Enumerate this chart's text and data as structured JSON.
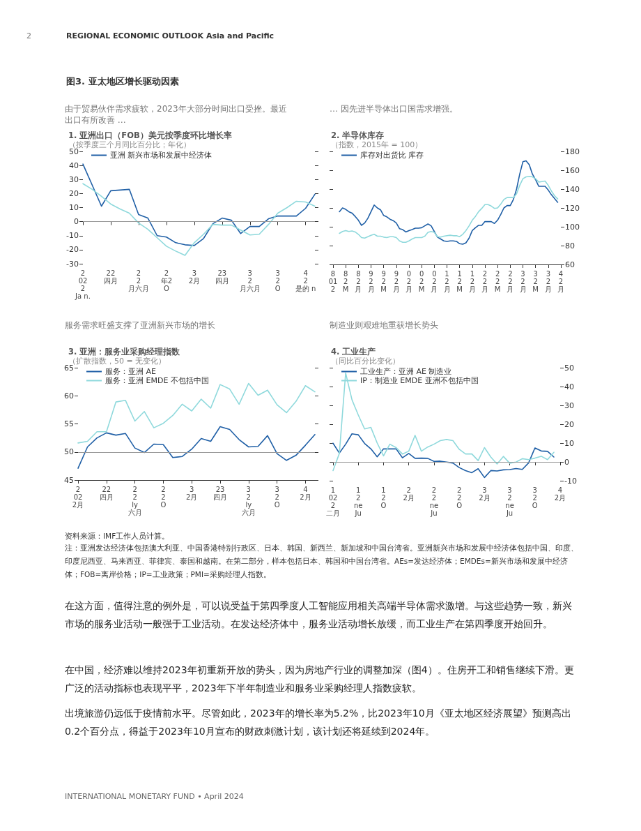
{
  "chart_data": [
    {
      "type": "other",
      "title": "图3. 亚太地区增长驱动因素",
      "annotations": [
        "2",
        "REGIONAL ECONOMIC OUTLOOK Asia and Pacific"
      ]
    },
    {
      "type": "line",
      "title": "1. 亚洲出口（FOB）美元按季度环比增长率",
      "subtitle": "（按季度三个月同比百分比；年化）",
      "annotations": [
        "由于贸易伙伴需求疲软，2023年大部分时间出口受挫。最近出口有所改善 …"
      ],
      "categories": [
        "2\n02\n2\nJa n.",
        null,
        null,
        "22\n四月",
        null,
        null,
        "2\n2\n月六月",
        null,
        null,
        "2\n年2\nO",
        null,
        null,
        "3\n2月",
        null,
        null,
        "23\n四月",
        null,
        null,
        "3\n2\n月六月",
        null,
        null,
        "3\n2\nO",
        null,
        null,
        "4\n2\n是的 n",
        null
      ],
      "series": [
        {
          "name": "亚洲 新兴市场和发展中经济体",
          "color": "#1f5fa6",
          "values": [
            41,
            26,
            11,
            22,
            22.5,
            23,
            5,
            2.5,
            -10,
            -11,
            -15,
            -16.5,
            -17,
            -12,
            -1.5,
            2.5,
            1,
            -8.5,
            -3.5,
            -3.5,
            2,
            4,
            4,
            4,
            9.5,
            19.5
          ]
        },
        {
          "color": "#8fd9dc",
          "values": [
            27,
            23,
            18,
            12.5,
            9,
            6,
            -1,
            -5.5,
            -11.5,
            -17.5,
            -21,
            -24,
            -15,
            -9,
            -2,
            -2.5,
            -2.5,
            -6,
            -9.5,
            -9,
            -2,
            6,
            10,
            14.5,
            14,
            11
          ]
        }
      ],
      "ylim": [
        -30,
        50
      ],
      "yticks": [
        -30,
        -20,
        -10,
        0,
        10,
        20,
        30,
        40,
        50
      ],
      "ref_lines": [
        {
          "axis": "y",
          "value": 0,
          "color": "#999999"
        }
      ],
      "legend": "top left",
      "marker": "none",
      "line_style": "solid"
    },
    {
      "type": "line",
      "title": "2. 半导体库存",
      "subtitle": "（指数，2015年 = 100）",
      "annotations": [
        "… 因先进半导体出口国需求增强。"
      ],
      "categories": [
        "8\n01\n2",
        null,
        null,
        null,
        "8\n2\nM",
        null,
        null,
        null,
        "8\n2\n月",
        null,
        null,
        null,
        "9\n2\n月",
        null,
        null,
        null,
        "9\n2\nM",
        null,
        null,
        null,
        "9\n2\n月",
        null,
        null,
        null,
        "0\n2\n月",
        null,
        null,
        null,
        "0\n2\nM",
        null,
        null,
        null,
        "0\n2\n月",
        null,
        null,
        null,
        "1\n2\n月",
        null,
        null,
        null,
        "1\n2\nM",
        null,
        null,
        null,
        "1\n2\n月",
        null,
        null,
        null,
        "2\n2\n月",
        null,
        null,
        null,
        "2\n2\nM",
        null,
        null,
        null,
        "2\n2\n月",
        null,
        null,
        null,
        "3\n2\n月",
        null,
        null,
        null,
        "3\n2\nM",
        null,
        null,
        null,
        "3\n2\n月",
        null,
        null,
        null,
        "4\n2\n月"
      ],
      "series": [
        {
          "name": "库存对出货比 库存",
          "color": "#1f5fa6",
          "axis": "y2",
          "values": [
            null,
            null,
            116,
            120,
            118.5,
            116,
            114.5,
            111,
            107,
            101.5,
            104,
            109,
            116,
            123,
            120,
            118,
            112,
            110.5,
            108,
            106.5,
            104,
            98,
            97,
            94.5,
            96,
            97,
            98.5,
            98.5,
            99,
            101,
            103,
            101,
            95,
            89,
            87,
            85,
            84.5,
            85,
            85,
            84.5,
            82,
            81.5,
            83,
            88,
            96,
            99,
            101.5,
            101.5,
            105.5,
            105.5,
            105.5,
            103.5,
            107,
            113,
            120,
            122.5,
            122.5,
            129,
            140,
            156,
            169,
            170,
            166,
            156,
            150,
            143,
            143,
            143,
            139,
            134,
            130,
            126,
            null
          ]
        },
        {
          "color": "#8fd9dc",
          "axis": "y2",
          "values": [
            null,
            null,
            93,
            95,
            96,
            95,
            95.5,
            94.5,
            92,
            88.5,
            88,
            89.5,
            91,
            92,
            90,
            90,
            89,
            88.5,
            89.5,
            89.5,
            88.5,
            85,
            83.5,
            83.5,
            85,
            87,
            88.5,
            88.5,
            88.5,
            90,
            94,
            95,
            94,
            89.5,
            89,
            90,
            90.5,
            91,
            90.5,
            90.5,
            89.5,
            92,
            96,
            101,
            107,
            111,
            116,
            119.5,
            123.5,
            123.5,
            122,
            119.5,
            120,
            124,
            129,
            131,
            131,
            131,
            135,
            144,
            151,
            153,
            153.5,
            153,
            151,
            147.5,
            148,
            148.5,
            144,
            138,
            133,
            129.5,
            null
          ]
        }
      ],
      "y2lim": [
        60,
        180
      ],
      "y2ticks": [
        60,
        80,
        100,
        120,
        140,
        160,
        180
      ],
      "legend": "top left",
      "marker": "none",
      "line_style": "solid"
    },
    {
      "type": "line",
      "title": "3. 亚洲：服务业采购经理指数",
      "subtitle": "（扩散指数，50 = 无变化）",
      "annotations": [
        "服务需求旺盛支撑了亚洲新兴市场的增长"
      ],
      "categories": [
        "2\n02\n2月",
        null,
        null,
        "22\n四月",
        null,
        null,
        "2\n2\nly\n六月",
        null,
        null,
        "2\n2\nO",
        null,
        null,
        "3\n2月",
        null,
        null,
        "23\n四月",
        null,
        null,
        "3\n2\nly\n六月",
        null,
        null,
        "3\n2\nO",
        null,
        null,
        "4\n2月",
        null
      ],
      "series": [
        {
          "name": "服务：亚洲 AE",
          "color": "#1f5fa6",
          "values": [
            47.1,
            50.9,
            52.5,
            53.4,
            53,
            53.3,
            50.7,
            49.9,
            51.4,
            51.3,
            49,
            49.2,
            50.5,
            52.4,
            51.9,
            54.5,
            54,
            52.2,
            50.9,
            51,
            52.9,
            49.7,
            48.5,
            49.4,
            51.2,
            53.1
          ]
        },
        {
          "name": "服务：亚洲 EMDE 不包括中国",
          "color": "#8fd9dc",
          "values": [
            51.6,
            51.9,
            53.6,
            53.6,
            58.9,
            59.2,
            55.5,
            57.2,
            54.3,
            55.1,
            56.5,
            58.5,
            57.3,
            59.4,
            57.8,
            62,
            61.2,
            58.5,
            62.2,
            60.1,
            61,
            58.4,
            57,
            59,
            61.8,
            60.7
          ]
        }
      ],
      "ylim": [
        45,
        65
      ],
      "yticks": [
        45,
        50,
        55,
        60,
        65
      ],
      "ref_lines": [
        {
          "axis": "y",
          "value": 50,
          "color": "#999999"
        }
      ],
      "legend": "top left",
      "marker": "none",
      "line_style": "solid"
    },
    {
      "type": "line",
      "title": "4. 工业生产",
      "subtitle": "（同比百分比变化）",
      "annotations": [
        "制造业则艰难地重获增长势头"
      ],
      "categories": [
        "1\n02\n2\n二月",
        null,
        null,
        null,
        "1\n2\nne\nJu",
        null,
        null,
        null,
        "1\n2\nO",
        null,
        null,
        null,
        "2\n2月",
        null,
        null,
        null,
        "2\n2\nne\nJu",
        null,
        null,
        null,
        "2\n2\nO",
        null,
        null,
        null,
        "3\n2月",
        null,
        null,
        null,
        "3\n2\nne\nJu",
        null,
        null,
        null,
        "3\n2\nO",
        null,
        null,
        null,
        "4\n2月"
      ],
      "series": [
        {
          "name": "工业生产：亚洲 AE 制造业",
          "color": "#1f5fa6",
          "axis": "y2",
          "values": [
            9.9,
            4.7,
            9.4,
            14.9,
            14.4,
            9.8,
            6.9,
            2.7,
            6.9,
            6.9,
            6.9,
            2.2,
            4.5,
            1.9,
            2,
            1.9,
            0.3,
            0.4,
            -0.1,
            -0.6,
            -3,
            -4.6,
            -5.7,
            -3.6,
            -8.3,
            -4.6,
            -4.8,
            -4.2,
            -4.1,
            -3.5,
            -4,
            -0.5,
            7.4,
            5.8,
            5.6,
            2.6,
            null
          ]
        },
        {
          "name": "IP：制造业 EMDE 亚洲不包括中国",
          "color": "#8fd9dc",
          "axis": "y2",
          "values": [
            -4.6,
            4.5,
            47.2,
            33,
            24.9,
            17.5,
            18.3,
            10,
            3.2,
            9.4,
            7.6,
            4.2,
            5.7,
            14.1,
            5.7,
            7.9,
            9.4,
            11.3,
            11.9,
            11.3,
            6.7,
            4.2,
            4.2,
            0.7,
            7.6,
            2.6,
            -1.1,
            2.9,
            -0.7,
            -0.1,
            1.7,
            1.2,
            2,
            3,
            1.2,
            5.1,
            null
          ]
        }
      ],
      "y2lim": [
        -10,
        50
      ],
      "y2ticks": [
        -10,
        0,
        10,
        20,
        30,
        40,
        50
      ],
      "ref_lines": [
        {
          "axis": "y2",
          "value": 0,
          "color": "#999999"
        }
      ],
      "legend": "top left",
      "marker": "none",
      "line_style": "solid"
    },
    {
      "type": "other",
      "annotations": [
        "资料来源：IMF工作人员计算。",
        "注：亚洲发达经济体包括澳大利亚、中国香港特别行政区、日本、韩国、新西兰、新加坡和中国台湾省。亚洲新兴市场和发展中经济体包括中国、印度、印度尼西亚、马来西亚、菲律宾、泰国和越南。在第二部分，样本包括日本、韩国和中国台湾省。AEs=发达经济体；EMDEs=新兴市场和发展中经济体；FOB=离岸价格；IP=工业政策；PMI=采购经理人指数。",
        "在这方面，值得注意的例外是，可以说受益于第四季度人工智能应用相关高端半导体需求激增。与这些趋势一致，新兴市场的服务业活动一般强于工业活动。在发达经济体中，服务业活动增长放缓，而工业生产在第四季度开始回升。",
        "在中国，经济难以维持2023年初重新开放的势头，因为房地产行业的调整加深（图4）。住房开工和销售继续下滑。更广泛的活动指标也表现平平，2023年下半年制造业和服务业采购经理人指数疲软。",
        "出境旅游仍远低于疫情前水平。尽管如此，2023年的增长率为5.2%，比2023年10月《亚太地区经济展望》预测高出0.2个百分点，得益于2023年10月宣布的财政刺激计划，该计划还将延续到2024年。",
        "INTERNATIONAL MONETARY FUND • April 2024"
      ]
    }
  ]
}
